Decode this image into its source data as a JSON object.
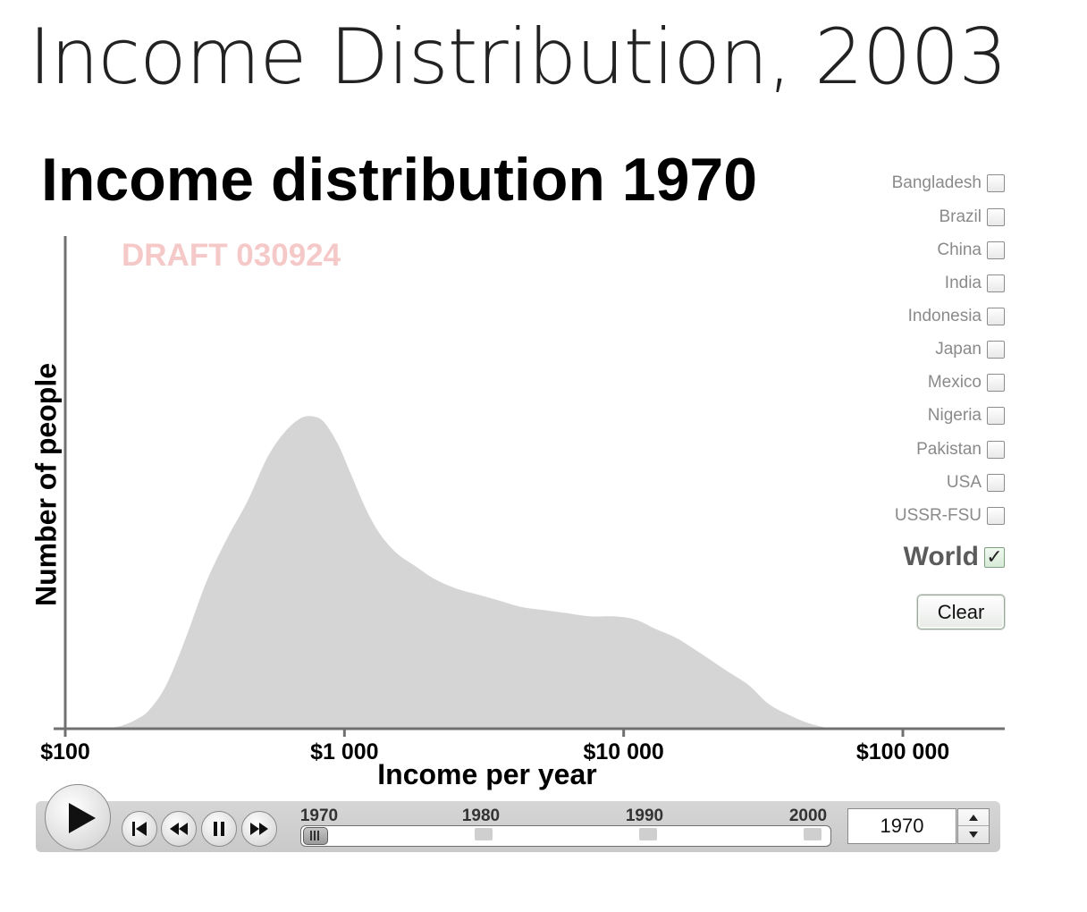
{
  "page": {
    "heading": "Income Distribution, 2003"
  },
  "chart": {
    "title": "Income distribution 1970",
    "watermark": "DRAFT 030924",
    "ylabel": "Number of people",
    "xlabel": "Income per year",
    "fill_color": "#d5d5d5",
    "axis_color": "#707070"
  },
  "chart_data": {
    "type": "area",
    "title": "Income distribution 1970",
    "xlabel": "Income per year",
    "ylabel": "Number of people",
    "x_scale": "log",
    "xlim": [
      100,
      250000
    ],
    "ylim": [
      0,
      1.0
    ],
    "x_ticks": [
      {
        "value": 100,
        "label": "$100"
      },
      {
        "value": 1000,
        "label": "$1 000"
      },
      {
        "value": 10000,
        "label": "$10 000"
      },
      {
        "value": 100000,
        "label": "$100 000"
      }
    ],
    "y_ticks_shown": false,
    "grid": false,
    "series": [
      {
        "values": [
          [
            140,
            0.0
          ],
          [
            160,
            0.01
          ],
          [
            180,
            0.03
          ],
          [
            200,
            0.06
          ],
          [
            230,
            0.14
          ],
          [
            270,
            0.29
          ],
          [
            320,
            0.47
          ],
          [
            380,
            0.61
          ],
          [
            450,
            0.73
          ],
          [
            530,
            0.87
          ],
          [
            610,
            0.95
          ],
          [
            700,
            0.996
          ],
          [
            780,
            1.0
          ],
          [
            850,
            0.98
          ],
          [
            950,
            0.91
          ],
          [
            1050,
            0.82
          ],
          [
            1200,
            0.7
          ],
          [
            1350,
            0.62
          ],
          [
            1550,
            0.56
          ],
          [
            1800,
            0.52
          ],
          [
            2100,
            0.48
          ],
          [
            2500,
            0.45
          ],
          [
            3000,
            0.43
          ],
          [
            3600,
            0.41
          ],
          [
            4300,
            0.39
          ],
          [
            5200,
            0.38
          ],
          [
            6300,
            0.37
          ],
          [
            7600,
            0.36
          ],
          [
            9300,
            0.36
          ],
          [
            11000,
            0.35
          ],
          [
            13000,
            0.32
          ],
          [
            15500,
            0.29
          ],
          [
            19000,
            0.24
          ],
          [
            23000,
            0.19
          ],
          [
            28000,
            0.14
          ],
          [
            33000,
            0.08
          ],
          [
            40000,
            0.04
          ],
          [
            47000,
            0.015
          ],
          [
            55000,
            0.0
          ]
        ]
      }
    ]
  },
  "countries": [
    {
      "label": "Bangladesh",
      "checked": false
    },
    {
      "label": "Brazil",
      "checked": false
    },
    {
      "label": "China",
      "checked": false
    },
    {
      "label": "India",
      "checked": false
    },
    {
      "label": "Indonesia",
      "checked": false
    },
    {
      "label": "Japan",
      "checked": false
    },
    {
      "label": "Mexico",
      "checked": false
    },
    {
      "label": "Nigeria",
      "checked": false
    },
    {
      "label": "Pakistan",
      "checked": false
    },
    {
      "label": "USA",
      "checked": false
    },
    {
      "label": "USSR-FSU",
      "checked": false
    }
  ],
  "world": {
    "label": "World",
    "checked": true,
    "check_glyph": "✓"
  },
  "clear_label": "Clear",
  "player": {
    "year_labels": [
      "1970",
      "1980",
      "1990",
      "2000"
    ],
    "slider": {
      "min": 1970,
      "max": 2003,
      "value": 1970
    },
    "current_year": "1970"
  }
}
